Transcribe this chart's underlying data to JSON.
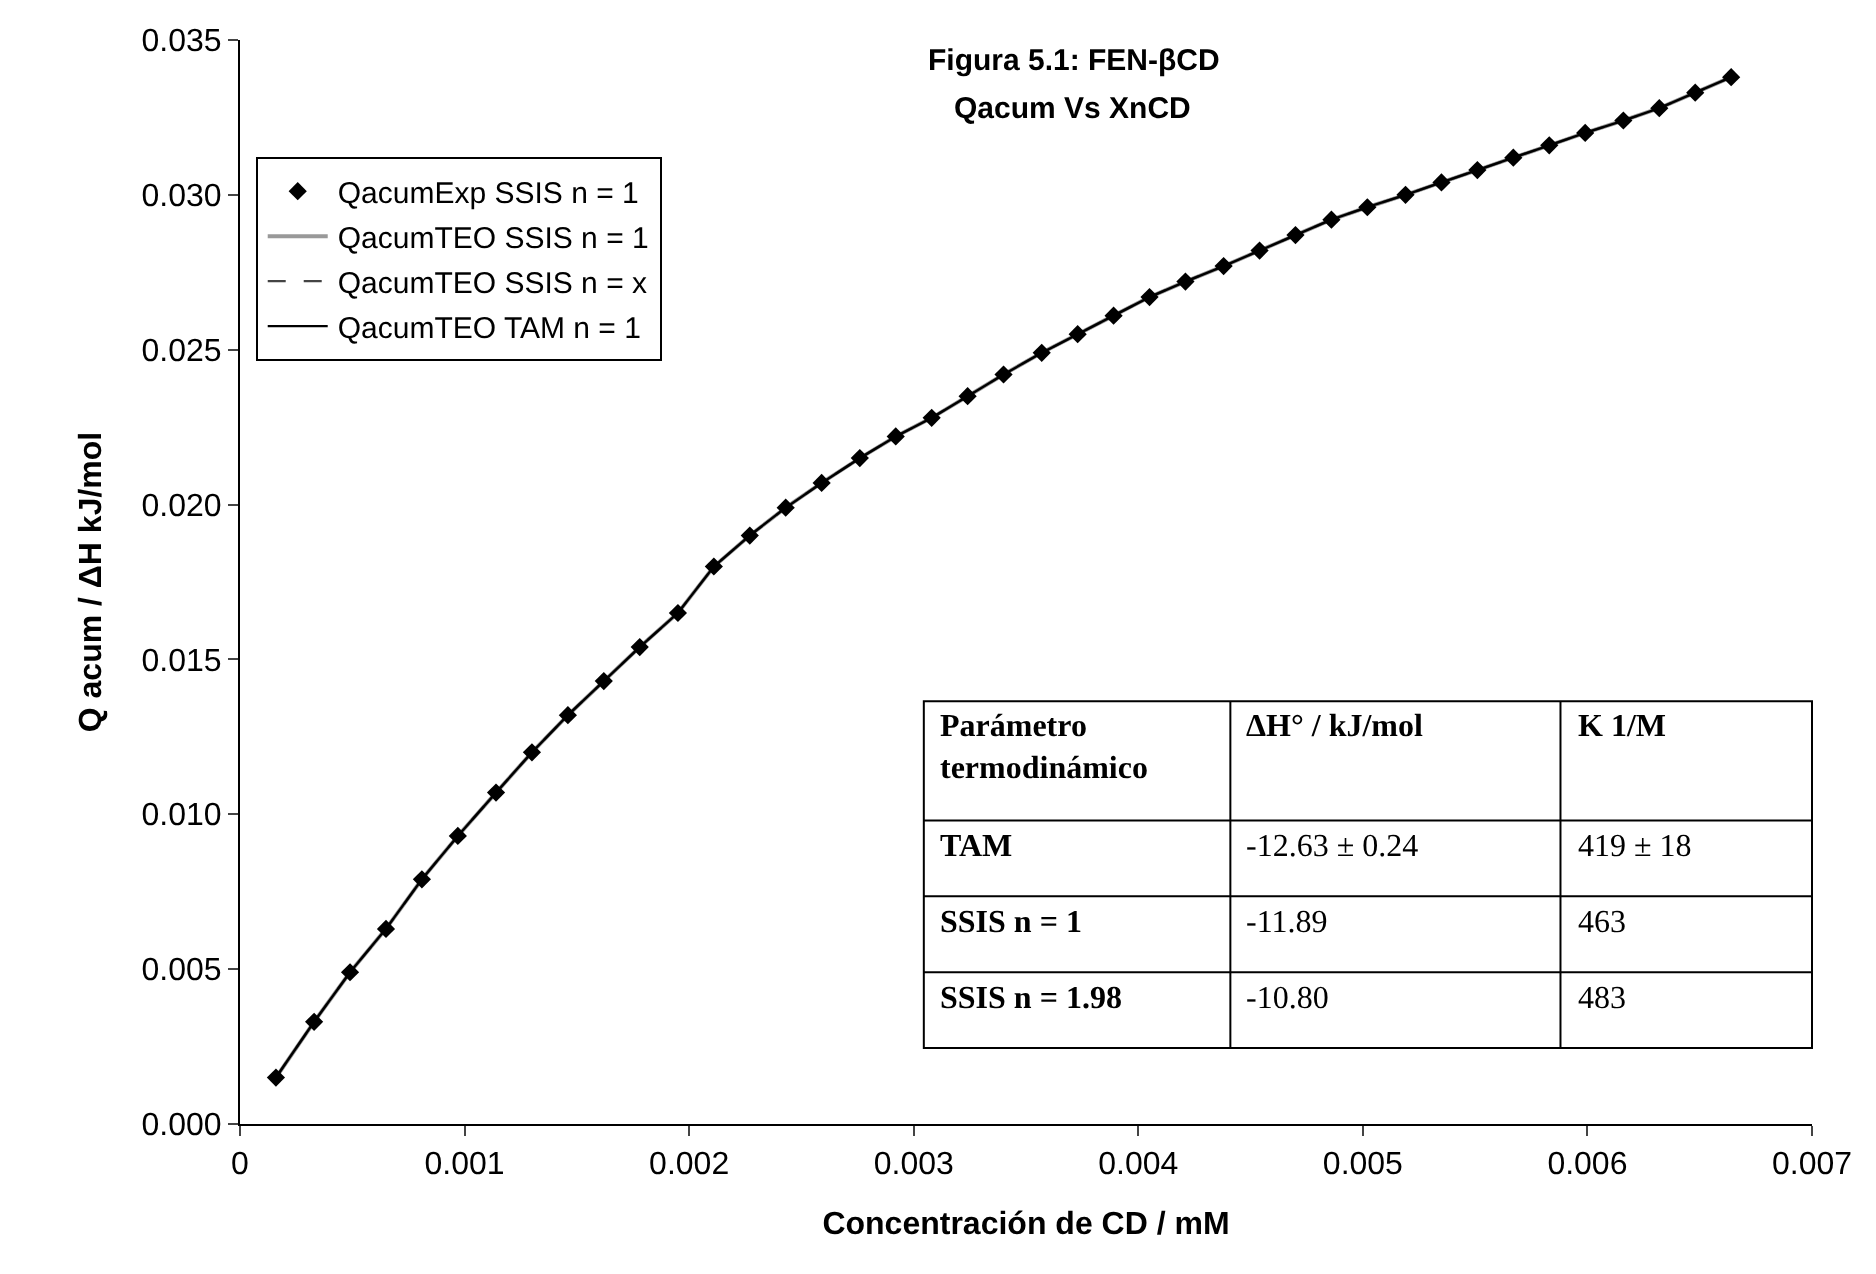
{
  "chart_data": {
    "type": "scatter",
    "title": "Figura 5.1: FEN-βCD",
    "subtitle": "Qacum Vs XnCD",
    "xlabel": "Concentración de CD / mM",
    "ylabel": "Q acum / ΔH kJ/mol",
    "x": [
      0.00016,
      0.00033,
      0.00049,
      0.00065,
      0.00081,
      0.00097,
      0.00114,
      0.0013,
      0.00146,
      0.00162,
      0.00178,
      0.00195,
      0.00211,
      0.00227,
      0.00243,
      0.00259,
      0.00276,
      0.00292,
      0.00308,
      0.00324,
      0.0034,
      0.00357,
      0.00373,
      0.00389,
      0.00405,
      0.00421,
      0.00438,
      0.00454,
      0.0047,
      0.00486,
      0.00502,
      0.00519,
      0.00535,
      0.00551,
      0.00567,
      0.00583,
      0.00599,
      0.00616,
      0.00632,
      0.00648,
      0.00664
    ],
    "series": [
      {
        "name": "QacumExp SSIS n = 1",
        "color": "#000000",
        "marker": "diamond",
        "values": [
          0.0015,
          0.0033,
          0.0049,
          0.0063,
          0.0079,
          0.0093,
          0.0107,
          0.012,
          0.0132,
          0.0143,
          0.0154,
          0.0165,
          0.018,
          0.019,
          0.0199,
          0.0207,
          0.0215,
          0.0222,
          0.0228,
          0.0235,
          0.0242,
          0.0249,
          0.0255,
          0.0261,
          0.0267,
          0.0272,
          0.0277,
          0.0282,
          0.0287,
          0.0292,
          0.0296,
          0.03,
          0.0304,
          0.0308,
          0.0312,
          0.0316,
          0.032,
          0.0324,
          0.0328,
          0.0333,
          0.0338
        ]
      },
      {
        "name": "QacumTEO SSIS n = 1",
        "type": "line",
        "color": "#999999",
        "line_style": "solid",
        "values": [
          0.0015,
          0.0033,
          0.0049,
          0.0063,
          0.0079,
          0.0093,
          0.0107,
          0.012,
          0.0132,
          0.0143,
          0.0154,
          0.0165,
          0.018,
          0.019,
          0.0199,
          0.0207,
          0.0215,
          0.0222,
          0.0228,
          0.0235,
          0.0242,
          0.0249,
          0.0255,
          0.0261,
          0.0267,
          0.0272,
          0.0277,
          0.0282,
          0.0287,
          0.0292,
          0.0296,
          0.03,
          0.0304,
          0.0308,
          0.0312,
          0.0316,
          0.032,
          0.0324,
          0.0328,
          0.0333,
          0.0338
        ]
      },
      {
        "name": "QacumTEO SSIS n = x",
        "type": "line",
        "color": "#444444",
        "line_style": "dashed",
        "values": [
          0.0015,
          0.0033,
          0.0049,
          0.0063,
          0.0079,
          0.0093,
          0.0107,
          0.012,
          0.0132,
          0.0143,
          0.0154,
          0.0165,
          0.018,
          0.019,
          0.0199,
          0.0207,
          0.0215,
          0.0222,
          0.0228,
          0.0235,
          0.0242,
          0.0249,
          0.0255,
          0.0261,
          0.0267,
          0.0272,
          0.0277,
          0.0282,
          0.0287,
          0.0292,
          0.0296,
          0.03,
          0.0304,
          0.0308,
          0.0312,
          0.0316,
          0.032,
          0.0324,
          0.0328,
          0.0333,
          0.0338
        ]
      },
      {
        "name": "QacumTEO TAM n = 1",
        "type": "line",
        "color": "#000000",
        "line_style": "solid",
        "values": [
          0.0015,
          0.0033,
          0.0049,
          0.0063,
          0.0079,
          0.0093,
          0.0107,
          0.012,
          0.0132,
          0.0143,
          0.0154,
          0.0165,
          0.018,
          0.019,
          0.0199,
          0.0207,
          0.0215,
          0.0222,
          0.0228,
          0.0235,
          0.0242,
          0.0249,
          0.0255,
          0.0261,
          0.0267,
          0.0272,
          0.0277,
          0.0282,
          0.0287,
          0.0292,
          0.0296,
          0.03,
          0.0304,
          0.0308,
          0.0312,
          0.0316,
          0.032,
          0.0324,
          0.0328,
          0.0333,
          0.0338
        ]
      }
    ],
    "xlim": [
      0,
      0.007
    ],
    "xticks": [
      0,
      0.001,
      0.002,
      0.003,
      0.004,
      0.005,
      0.006,
      0.007
    ],
    "ylim": [
      0,
      0.035
    ],
    "yticks": [
      {
        "value": 0,
        "label": "0.000"
      },
      {
        "value": 0.005,
        "label": "0.005"
      },
      {
        "value": 0.01,
        "label": "0.010"
      },
      {
        "value": 0.015,
        "label": "0.015"
      },
      {
        "value": 0.02,
        "label": "0.020"
      },
      {
        "value": 0.025,
        "label": "0.025"
      },
      {
        "value": 0.03,
        "label": "0.030"
      },
      {
        "value": 0.035,
        "label": "0.035"
      }
    ],
    "grid": false,
    "legend": "top left",
    "annotations": [
      "Parámetro termodinámico",
      "ΔH° / kJ/mol",
      "K 1/M",
      "TAM",
      "-12.63 ± 0.24",
      "419 ± 18",
      "SSIS n = 1",
      "-11.89",
      "463",
      "SSIS n = 1.98",
      "-10.80",
      "483"
    ]
  }
}
